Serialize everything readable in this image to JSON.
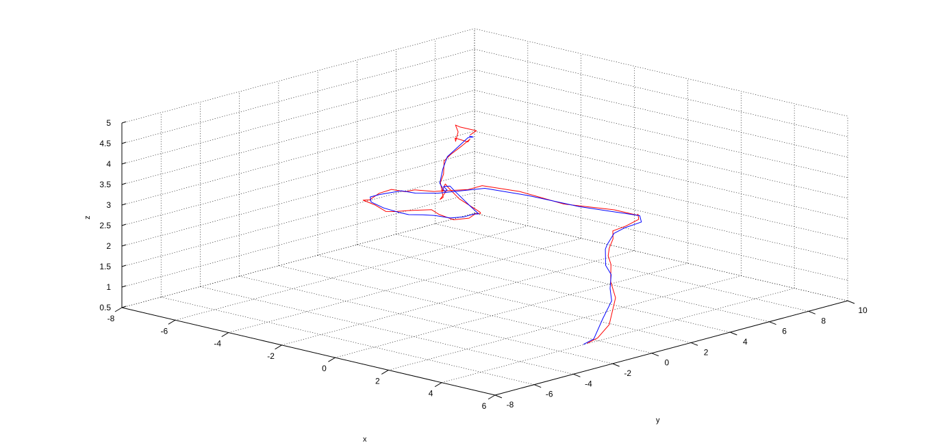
{
  "chart_data": {
    "type": "line3d",
    "title": "",
    "xlabel": "x",
    "ylabel": "y",
    "zlabel": "z",
    "xlim": [
      -8,
      6
    ],
    "ylim": [
      -8,
      10
    ],
    "zlim": [
      0.5,
      5
    ],
    "x_ticks": [
      "-8",
      "-6",
      "-4",
      "-2",
      "0",
      "2",
      "4",
      "6"
    ],
    "y_ticks": [
      "-8",
      "-6",
      "-4",
      "-2",
      "0",
      "2",
      "4",
      "6",
      "8",
      "10"
    ],
    "z_ticks": [
      "0.5",
      "1",
      "1.5",
      "2",
      "2.5",
      "3",
      "3.5",
      "4",
      "4.5",
      "5"
    ],
    "grid": true,
    "series": [
      {
        "color": "#ff0000",
        "points": [
          [
            5.2,
            -2.2,
            0.9
          ],
          [
            5.0,
            -1.4,
            0.9
          ],
          [
            4.7,
            -0.4,
            1.05
          ],
          [
            4.2,
            0.6,
            1.5
          ],
          [
            3.5,
            1.3,
            1.7
          ],
          [
            3.0,
            2.0,
            1.95
          ],
          [
            2.6,
            2.4,
            2.05
          ],
          [
            2.2,
            3.0,
            2.1
          ],
          [
            1.9,
            3.6,
            2.2
          ],
          [
            1.6,
            4.0,
            2.3
          ],
          [
            1.5,
            4.8,
            2.3
          ],
          [
            1.1,
            6.0,
            2.25
          ],
          [
            1.0,
            6.1,
            2.35
          ],
          [
            0.6,
            6.6,
            2.2
          ],
          [
            0.2,
            6.8,
            2.15
          ],
          [
            -0.4,
            6.8,
            2.15
          ],
          [
            -2.0,
            6.4,
            2.1
          ],
          [
            -3.5,
            6.2,
            2.2
          ],
          [
            -4.7,
            5.9,
            2.2
          ],
          [
            -5.0,
            5.6,
            2.1
          ],
          [
            -6.0,
            5.2,
            1.95
          ],
          [
            -6.5,
            4.9,
            1.95
          ],
          [
            -6.7,
            4.7,
            1.9
          ],
          [
            -7.0,
            4.4,
            1.95
          ],
          [
            -6.8,
            3.5,
            2.0
          ],
          [
            -6.5,
            2.6,
            2.0
          ],
          [
            -6.3,
            2.0,
            2.1
          ],
          [
            -5.7,
            1.8,
            2.1
          ],
          [
            -5.0,
            1.4,
            2.1
          ],
          [
            -4.5,
            1.2,
            2.2
          ],
          [
            -4.0,
            1.2,
            2.3
          ],
          [
            -3.5,
            1.1,
            2.4
          ],
          [
            -3.0,
            1.0,
            2.5
          ],
          [
            -2.5,
            0.7,
            2.5
          ],
          [
            -1.8,
            0.5,
            2.5
          ],
          [
            -1.0,
            0.2,
            2.7
          ],
          [
            -0.6,
            0.0,
            2.9
          ],
          [
            -0.2,
            -0.3,
            3.0
          ],
          [
            0.0,
            -0.6,
            3.1
          ],
          [
            -0.2,
            -1.4,
            3.5
          ],
          [
            -0.3,
            -1.8,
            3.8
          ],
          [
            -0.2,
            -2.1,
            3.95
          ],
          [
            0.2,
            -2.8,
            3.95
          ],
          [
            0.7,
            -3.3,
            4.05
          ],
          [
            0.7,
            -3.6,
            3.9
          ],
          [
            0.6,
            -3.3,
            3.9
          ],
          [
            0.2,
            -2.9,
            4.15
          ],
          [
            0.1,
            -2.6,
            4.3
          ],
          [
            -0.1,
            -2.3,
            4.55
          ],
          [
            -0.3,
            -1.7,
            4.6
          ],
          [
            -0.4,
            -1.0,
            4.7
          ],
          [
            -0.6,
            -0.3,
            4.75
          ],
          [
            -0.9,
            0.0,
            4.6
          ],
          [
            -1.6,
            0.3,
            4.55
          ],
          [
            -1.8,
            0.6,
            4.4
          ],
          [
            -2.0,
            1.0,
            4.55
          ],
          [
            -2.1,
            1.0,
            4.7
          ],
          [
            -1.7,
            0.7,
            4.75
          ],
          [
            -0.8,
            0.3,
            4.85
          ],
          [
            -0.6,
            -0.3,
            4.85
          ]
        ]
      },
      {
        "color": "#0000ff",
        "points": [
          [
            5.2,
            -2.4,
            0.9
          ],
          [
            5.0,
            -1.6,
            0.9
          ],
          [
            4.6,
            -0.6,
            1.2
          ],
          [
            4.2,
            0.4,
            1.45
          ],
          [
            3.7,
            1.0,
            1.6
          ],
          [
            3.3,
            1.6,
            1.8
          ],
          [
            2.8,
            2.0,
            1.9
          ],
          [
            2.2,
            2.8,
            2.1
          ],
          [
            1.9,
            3.3,
            2.1
          ],
          [
            1.5,
            4.2,
            2.2
          ],
          [
            1.3,
            5.0,
            2.2
          ],
          [
            1.2,
            6.0,
            2.2
          ],
          [
            0.7,
            6.6,
            2.2
          ],
          [
            0.1,
            6.7,
            2.15
          ],
          [
            -1.5,
            6.5,
            2.1
          ],
          [
            -3.2,
            6.2,
            2.15
          ],
          [
            -4.6,
            5.9,
            2.15
          ],
          [
            -5.2,
            5.5,
            2.05
          ],
          [
            -5.8,
            5.1,
            1.95
          ],
          [
            -6.4,
            4.8,
            1.9
          ],
          [
            -6.7,
            4.5,
            1.95
          ],
          [
            -6.7,
            3.4,
            2.0
          ],
          [
            -6.4,
            2.5,
            2.1
          ],
          [
            -6.0,
            2.0,
            2.1
          ],
          [
            -5.3,
            1.7,
            2.1
          ],
          [
            -4.5,
            1.4,
            2.15
          ],
          [
            -4.0,
            1.2,
            2.2
          ],
          [
            -3.4,
            1.1,
            2.3
          ],
          [
            -2.8,
            0.9,
            2.4
          ],
          [
            -2.0,
            0.6,
            2.5
          ],
          [
            -1.2,
            0.2,
            2.7
          ],
          [
            -0.6,
            -0.1,
            2.9
          ],
          [
            -0.2,
            -0.4,
            3.0
          ],
          [
            -0.1,
            -1.0,
            3.3
          ],
          [
            -0.2,
            -1.6,
            3.7
          ],
          [
            -0.1,
            -2.0,
            3.9
          ],
          [
            0.1,
            -2.6,
            4.0
          ],
          [
            0.6,
            -3.1,
            4.05
          ],
          [
            0.8,
            -3.5,
            4.1
          ],
          [
            0.4,
            -3.2,
            4.2
          ],
          [
            0.0,
            -2.5,
            4.4
          ],
          [
            -0.2,
            -2.0,
            4.6
          ],
          [
            -0.4,
            -1.2,
            4.7
          ],
          [
            -0.6,
            -0.4,
            4.8
          ],
          [
            -0.7,
            0.0,
            4.75
          ],
          [
            -1.0,
            0.2,
            4.7
          ]
        ]
      }
    ]
  }
}
